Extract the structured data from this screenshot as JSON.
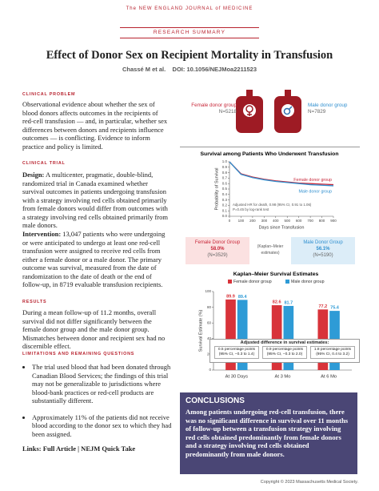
{
  "header": {
    "journal": "The NEW ENGLAND JOURNAL of MEDICINE",
    "section": "RESEARCH SUMMARY",
    "title": "Effect of Donor Sex on Recipient Mortality in Transfusion",
    "authors": "Chassé M et al.",
    "doi": "DOI: 10.1056/NEJMoa2211523"
  },
  "clinical_problem": {
    "heading": "CLINICAL PROBLEM",
    "text": "Observational evidence about whether the sex of blood donors affects outcomes in the recipients of red-cell transfusion — and, in particular, whether sex differences between donors and recipients influence outcomes — is conflicting. Evidence to inform practice and policy is limited."
  },
  "clinical_trial": {
    "heading": "CLINICAL TRIAL",
    "design_label": "Design:",
    "design": "A multicenter, pragmatic, double-blind, randomized trial in Canada examined whether survival outcomes in patients undergoing transfusion with a strategy involving red cells obtained primarily from female donors would differ from outcomes with a strategy involving red cells obtained primarily from male donors.",
    "intervention_label": "Intervention:",
    "intervention": "13,047 patients who were undergoing or were anticipated to undergo at least one red-cell transfusion were assigned to receive red cells from either a female donor or a male donor. The primary outcome was survival, measured from the date of randomization to the date of death or the end of follow-up, in 8719 evaluable transfusion recipients."
  },
  "results": {
    "heading": "RESULTS",
    "text": "During a mean follow-up of 11.2 months, overall survival did not differ significantly between the female donor group and the male donor group. Mismatches between donor and recipient sex had no discernible effect."
  },
  "limitations": {
    "heading": "LIMITATIONS AND REMAINING QUESTIONS",
    "bullets": [
      "The trial used blood that had been donated through Canadian Blood Services; the findings of this trial may not be generalizable to jurisdictions where blood-bank practices or red-cell products are substantially different.",
      "Approximately 11% of the patients did not receive blood according to the donor sex to which they had been assigned."
    ]
  },
  "links": "Links: Full Article | NEJM Quick Take",
  "groups": [
    {
      "name": "Female donor group",
      "n": "N=5218"
    },
    {
      "name": "Male donor group",
      "n": "N=7829"
    }
  ],
  "chart_data": [
    {
      "type": "line",
      "title": "Survival among Patients Who Underwent Transfusion",
      "xlabel": "Days since Transfusion",
      "ylabel": "Probability of Survival",
      "annotations": [
        "Adjusted HR for death, 0.98 (95% CI, 0.91 to 1.06)",
        "P=0.45 by log-rank test"
      ],
      "x": [
        0,
        100,
        200,
        300,
        400,
        500,
        600,
        700,
        800,
        900
      ],
      "series": [
        {
          "name": "Female donor group",
          "color": "#c8283a",
          "values": [
            1.0,
            0.78,
            0.72,
            0.68,
            0.65,
            0.63,
            0.61,
            0.6,
            0.59,
            0.58
          ]
        },
        {
          "name": "Male donor group",
          "color": "#2f8fcf",
          "values": [
            1.0,
            0.77,
            0.71,
            0.67,
            0.64,
            0.62,
            0.6,
            0.58,
            0.57,
            0.56
          ]
        }
      ],
      "xlim": [
        0,
        900
      ],
      "ylim": [
        0,
        1
      ],
      "xticks": [
        0,
        100,
        200,
        300,
        400,
        500,
        600,
        700,
        800,
        900
      ],
      "yticks": [
        {
          "value": 0,
          "label": "0.0"
        },
        0.1,
        0.2,
        0.3,
        0.4,
        0.5,
        0.6,
        0.7,
        0.8,
        0.9,
        {
          "value": 1,
          "label": "1.0"
        }
      ]
    },
    {
      "type": "bar",
      "title": "Kaplan–Meier Survival Estimates",
      "ylabel": "Survival Estimate (%)",
      "categories": [
        "At 30 Days",
        "At 3 Mo",
        "At 6 Mo"
      ],
      "series": [
        {
          "name": "Female donor group",
          "color": "#d8333a",
          "values": [
            89.9,
            82.6,
            77.2
          ]
        },
        {
          "name": "Male donor group",
          "color": "#2e9bd6",
          "values": [
            89.4,
            81.7,
            75.4
          ]
        }
      ],
      "ylim": [
        0,
        100
      ],
      "yticks": [
        0,
        20,
        40,
        60,
        80,
        100
      ]
    }
  ],
  "km_estimates": {
    "female": {
      "name": "Female Donor Group",
      "value": "58.0%",
      "n": "(N=3529)"
    },
    "label": "(Kaplan–Meier estimates)",
    "male": {
      "name": "Male Donor Group",
      "value": "56.1%",
      "n": "(N=5190)"
    }
  },
  "difference_box": {
    "title": "Adjusted difference in survival estimates:",
    "cells": [
      "0.5 percentage points (95% CI, −0.3 to 1.4)",
      "0.9 percentage points (95% CI, −0.3 to 2.0)",
      "1.8 percentage points (95% CI, 0.4 to 3.2)"
    ]
  },
  "conclusions": {
    "heading": "CONCLUSIONS",
    "text": "Among patients undergoing red-cell transfusion, there was no significant difference in survival over 11 months of follow-up between a transfusion strategy involving red cells obtained predominantly from female donors and a strategy involving red cells obtained predominantly from male donors."
  },
  "copyright": "Copyright © 2023 Massachusetts Medical Society."
}
